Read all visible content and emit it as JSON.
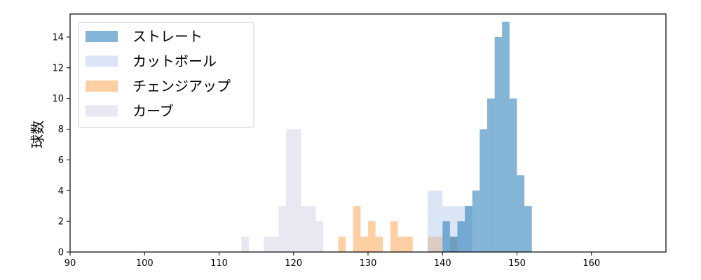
{
  "chart_data": {
    "type": "histogram",
    "title": "",
    "xlabel": "",
    "ylabel": "球数",
    "xlim": [
      90,
      170
    ],
    "ylim": [
      0,
      15.5
    ],
    "xticks": [
      90,
      100,
      110,
      120,
      130,
      140,
      150,
      160
    ],
    "yticks": [
      0,
      2,
      4,
      6,
      8,
      10,
      12,
      14
    ],
    "legend_position": "top-left",
    "series": [
      {
        "name": "ストレート",
        "color": "#1f77b4",
        "opacity": 0.55,
        "bins": [
          {
            "x0": 140,
            "x1": 141,
            "count": 2
          },
          {
            "x0": 141,
            "x1": 142,
            "count": 1
          },
          {
            "x0": 142,
            "x1": 143,
            "count": 2
          },
          {
            "x0": 143,
            "x1": 144,
            "count": 3
          },
          {
            "x0": 144,
            "x1": 145,
            "count": 4
          },
          {
            "x0": 145,
            "x1": 146,
            "count": 8
          },
          {
            "x0": 146,
            "x1": 147,
            "count": 10
          },
          {
            "x0": 147,
            "x1": 148,
            "count": 14
          },
          {
            "x0": 148,
            "x1": 149,
            "count": 15
          },
          {
            "x0": 149,
            "x1": 150,
            "count": 10
          },
          {
            "x0": 150,
            "x1": 151,
            "count": 5
          },
          {
            "x0": 151,
            "x1": 152,
            "count": 3
          }
        ]
      },
      {
        "name": "カットボール",
        "color": "#aec7e8",
        "opacity": 0.45,
        "bins": [
          {
            "x0": 138,
            "x1": 140,
            "count": 4
          },
          {
            "x0": 140,
            "x1": 142,
            "count": 3
          },
          {
            "x0": 142,
            "x1": 144,
            "count": 3
          }
        ]
      },
      {
        "name": "チェンジアップ",
        "color": "#ff9f4a",
        "opacity": 0.5,
        "bins": [
          {
            "x0": 126,
            "x1": 127,
            "count": 1
          },
          {
            "x0": 128,
            "x1": 129,
            "count": 3
          },
          {
            "x0": 129,
            "x1": 130,
            "count": 1
          },
          {
            "x0": 130,
            "x1": 131,
            "count": 2
          },
          {
            "x0": 131,
            "x1": 132,
            "count": 1
          },
          {
            "x0": 133,
            "x1": 134,
            "count": 2
          },
          {
            "x0": 134,
            "x1": 136,
            "count": 1
          },
          {
            "x0": 138,
            "x1": 140,
            "count": 1
          },
          {
            "x0": 141,
            "x1": 142,
            "count": 1
          }
        ]
      },
      {
        "name": "カーブ",
        "color": "#c5c5e0",
        "opacity": 0.4,
        "bins": [
          {
            "x0": 113,
            "x1": 114,
            "count": 1
          },
          {
            "x0": 116,
            "x1": 118,
            "count": 1
          },
          {
            "x0": 118,
            "x1": 119,
            "count": 3
          },
          {
            "x0": 119,
            "x1": 121,
            "count": 8
          },
          {
            "x0": 121,
            "x1": 123,
            "count": 3
          },
          {
            "x0": 123,
            "x1": 124,
            "count": 2
          }
        ]
      }
    ]
  }
}
